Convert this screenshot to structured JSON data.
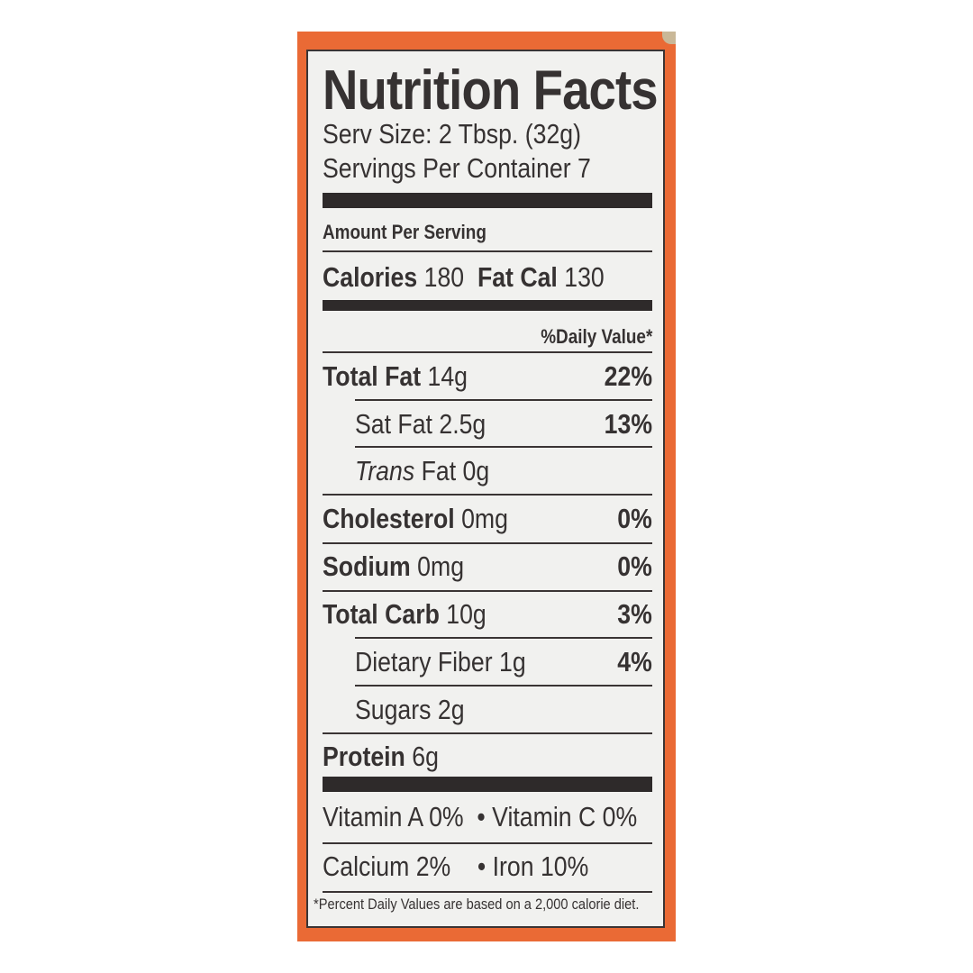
{
  "title": "Nutrition Facts",
  "serving_size": "Serv Size: 2 Tbsp. (32g)",
  "servings_per_container": "Servings Per Container 7",
  "amount_per_serving": "Amount Per Serving",
  "calories": {
    "label": "Calories",
    "value": "180",
    "fat_label": "Fat Cal",
    "fat_value": "130"
  },
  "daily_value_header": "%Daily Value*",
  "nutrients": [
    {
      "name": "Total Fat",
      "amount": "14g",
      "dv": "22%"
    },
    {
      "name": "Sat Fat",
      "amount": "2.5g",
      "dv": "13%"
    },
    {
      "name": "Trans",
      "amount": "Fat 0g",
      "dv": ""
    },
    {
      "name": "Cholesterol",
      "amount": "0mg",
      "dv": "0%"
    },
    {
      "name": "Sodium",
      "amount": "0mg",
      "dv": "0%"
    },
    {
      "name": "Total Carb",
      "amount": "10g",
      "dv": "3%"
    },
    {
      "name": "Dietary Fiber",
      "amount": "1g",
      "dv": "4%"
    },
    {
      "name": "Sugars",
      "amount": "2g",
      "dv": ""
    },
    {
      "name": "Protein",
      "amount": "6g",
      "dv": ""
    }
  ],
  "vitamins": [
    "Vitamin A 0%",
    "•  Vitamin C 0%",
    "Calcium 2%",
    "•  Iron 10%"
  ],
  "footnote": "*Percent Daily Values are based on a 2,000 calorie diet.",
  "colors": {
    "package": "#ea6a35",
    "label_bg": "#f1f1ef",
    "ink": "#363232"
  }
}
